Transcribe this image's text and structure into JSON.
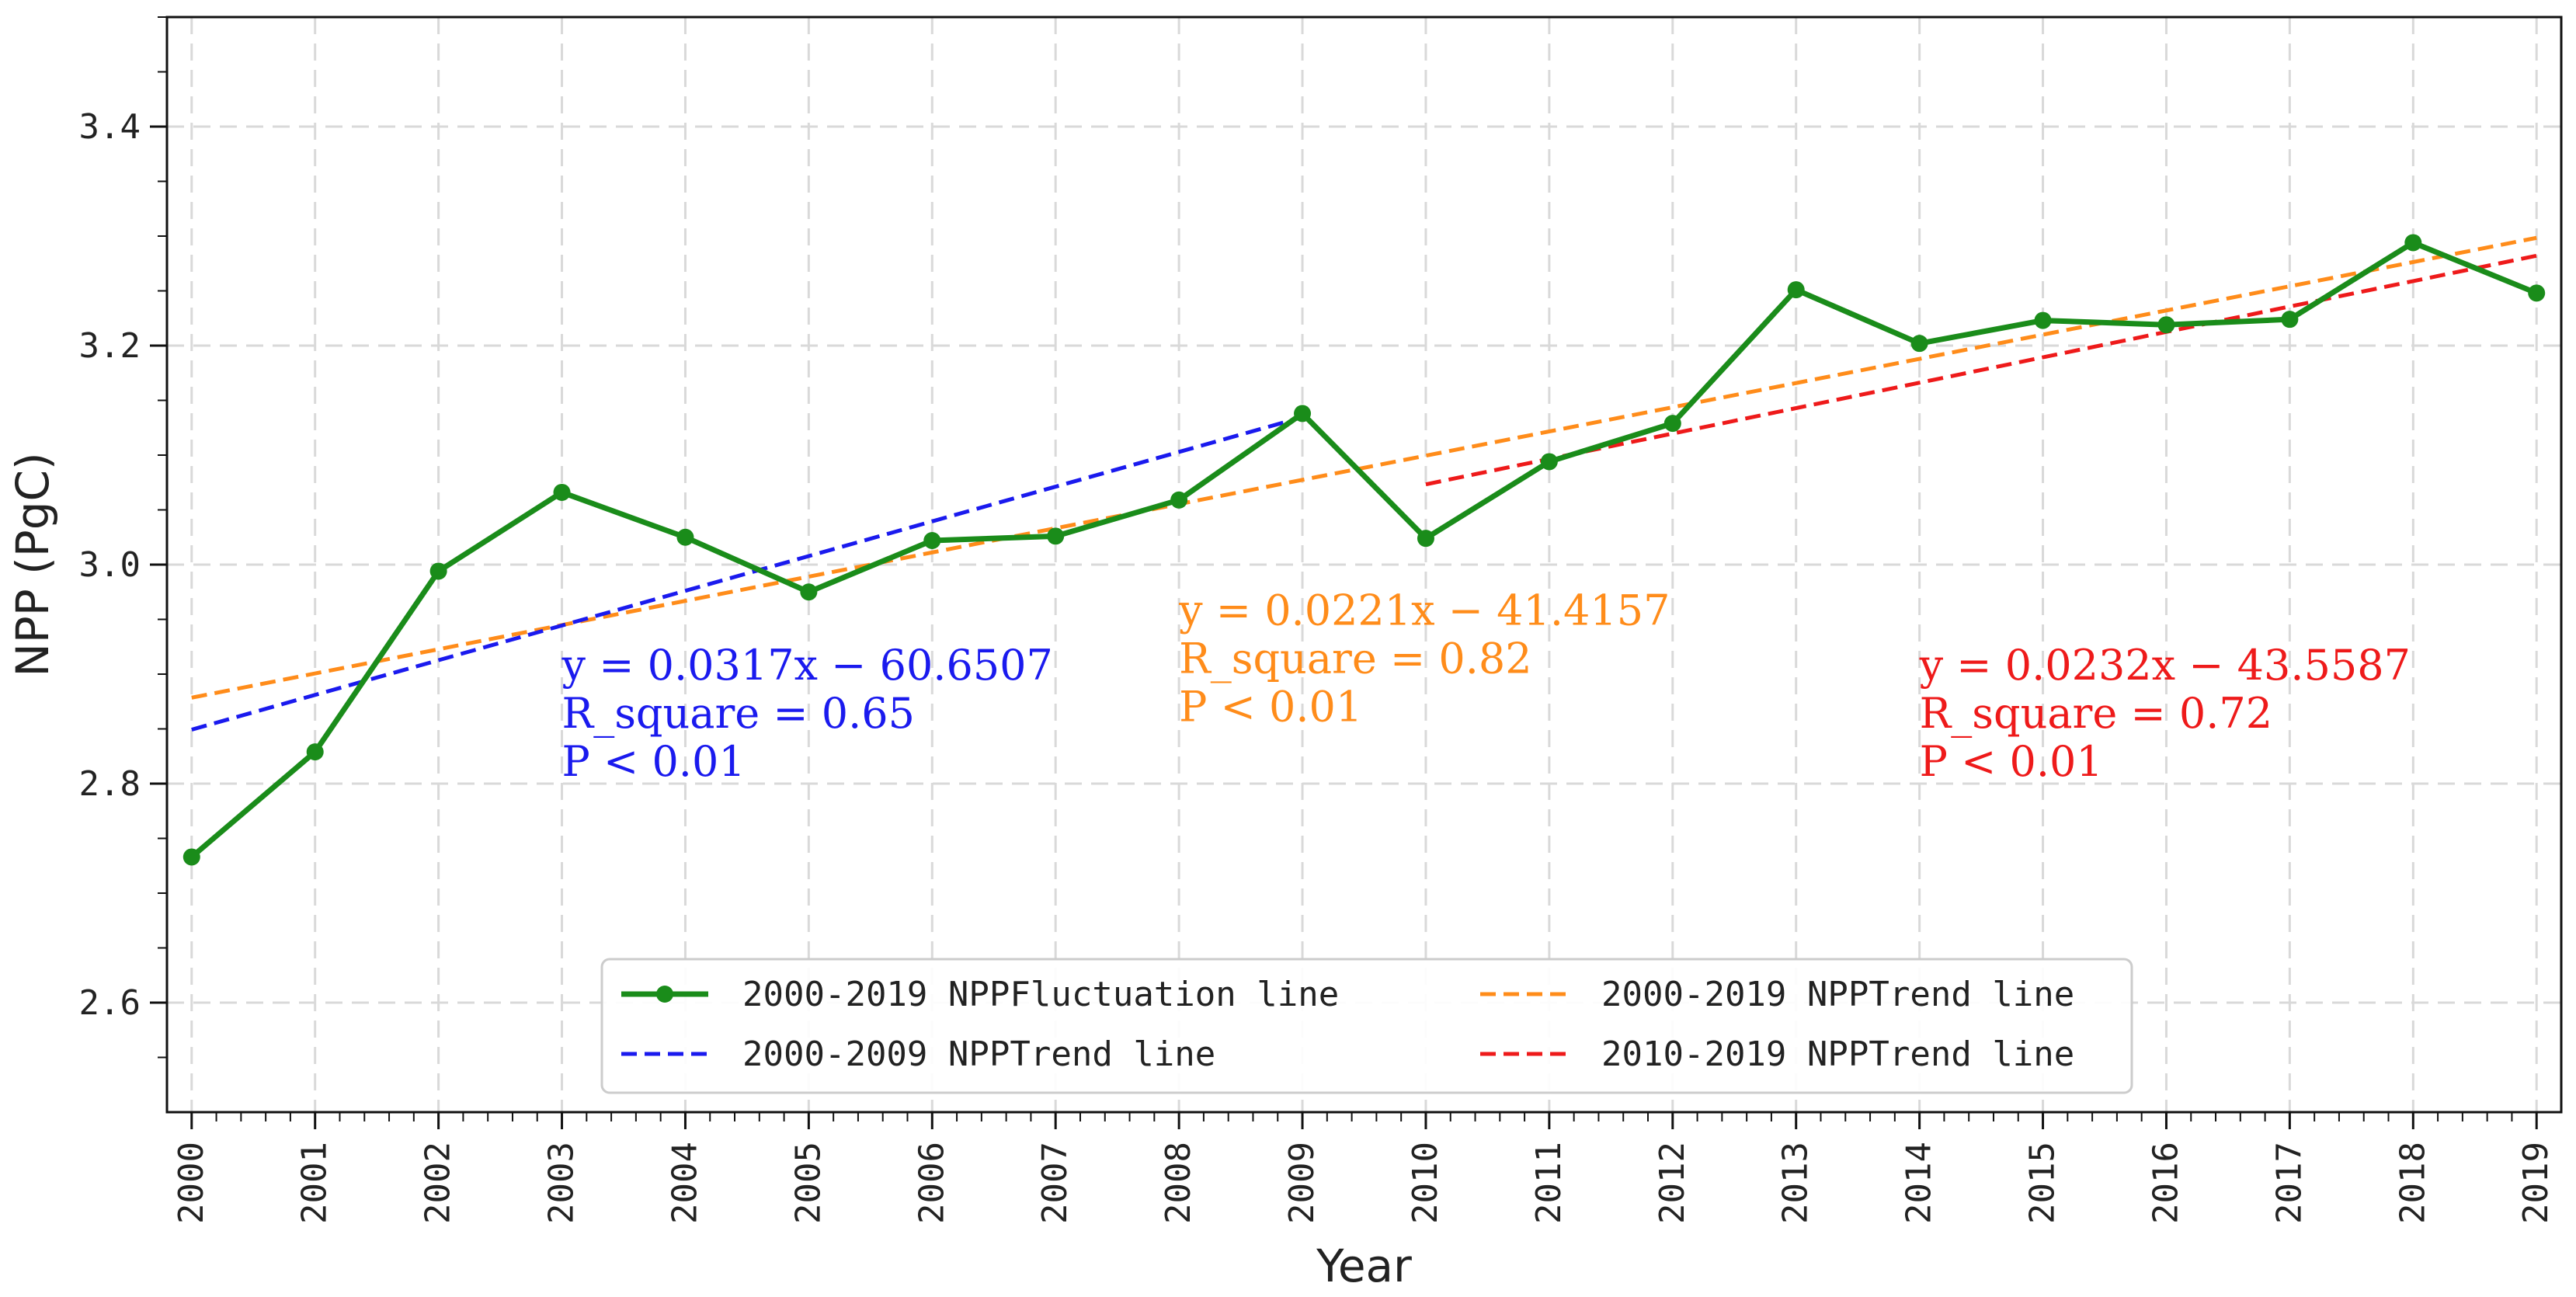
{
  "chart_data": {
    "type": "line",
    "title": "",
    "xlabel": "Year",
    "ylabel": "NPP (PgC)",
    "xlim": [
      1999.8,
      2019.2
    ],
    "ylim": [
      2.5,
      3.5
    ],
    "xticks": [
      2000,
      2001,
      2002,
      2003,
      2004,
      2005,
      2006,
      2007,
      2008,
      2009,
      2010,
      2011,
      2012,
      2013,
      2014,
      2015,
      2016,
      2017,
      2018,
      2019
    ],
    "yticks": [
      2.6,
      2.8,
      3.0,
      3.2,
      3.4
    ],
    "ytick_labels": [
      "2.6",
      "2.8",
      "3.0",
      "3.2",
      "3.4"
    ],
    "grid": true,
    "legend_position": "bottom-center",
    "series": [
      {
        "name": "2000-2019 NPPFluctuation line",
        "style": "solid-marker",
        "color": "#1a8c1a",
        "x": [
          2000,
          2001,
          2002,
          2003,
          2004,
          2005,
          2006,
          2007,
          2008,
          2009,
          2010,
          2011,
          2012,
          2013,
          2014,
          2015,
          2016,
          2017,
          2018,
          2019
        ],
        "values": [
          2.733,
          2.829,
          2.994,
          3.066,
          3.025,
          2.975,
          3.022,
          3.026,
          3.059,
          3.138,
          3.024,
          3.094,
          3.129,
          3.251,
          3.202,
          3.223,
          3.219,
          3.224,
          3.294,
          3.248
        ]
      },
      {
        "name": "2000-2019 NPPTrend line",
        "style": "dashed",
        "color": "#ff8c1a",
        "x": [
          2000,
          2019
        ],
        "values": [
          2.8785,
          3.2984
        ]
      },
      {
        "name": "2000-2009 NPPTrend line",
        "style": "dashed",
        "color": "#1a1aee",
        "x": [
          2000,
          2009
        ],
        "values": [
          2.8493,
          3.1346
        ]
      },
      {
        "name": "2010-2019 NPPTrend line",
        "style": "dashed",
        "color": "#ee1a1a",
        "x": [
          2010,
          2019
        ],
        "values": [
          3.0733,
          3.2821
        ]
      }
    ],
    "legend_order": [
      0,
      2,
      1,
      3
    ],
    "annotations": [
      {
        "lines": [
          "y = 0.0317x − 60.6507",
          "R_square = 0.65",
          "P < 0.01"
        ],
        "color": "#1a1aee",
        "x": 2003,
        "y": 2.895
      },
      {
        "lines": [
          "y = 0.0221x − 41.4157",
          "R_square = 0.82",
          "P < 0.01"
        ],
        "color": "#ff8c1a",
        "x": 2008,
        "y": 2.945
      },
      {
        "lines": [
          "y = 0.0232x − 43.5587",
          "R_square = 0.72",
          "P < 0.01"
        ],
        "color": "#ee1a1a",
        "x": 2014,
        "y": 2.895
      }
    ]
  }
}
